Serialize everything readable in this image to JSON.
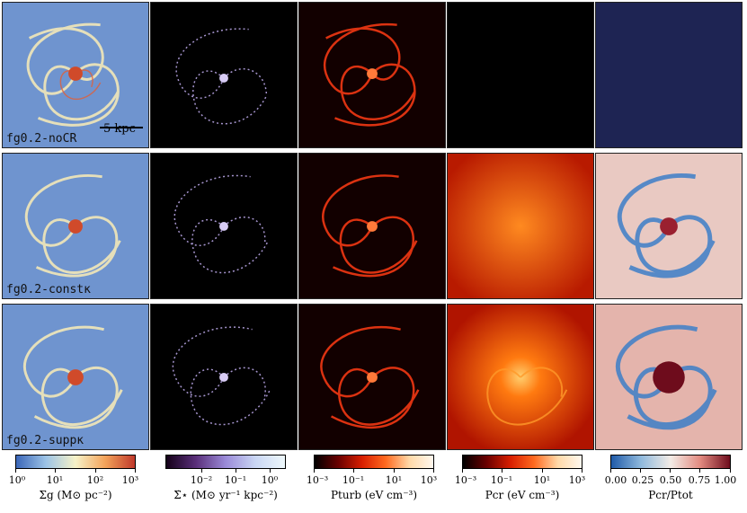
{
  "rows": [
    {
      "label": "fg0.2-noCR"
    },
    {
      "label": "fg0.2-constκ"
    },
    {
      "label": "fg0.2-suppκ"
    }
  ],
  "scale_label": "5 kpc",
  "colorbars": [
    {
      "title": "Σg (M⊙ pc⁻²)",
      "ticks": [
        "10⁰",
        "10¹",
        "10²",
        "10³"
      ]
    },
    {
      "title": "Σ̇⋆ (M⊙ yr⁻¹ kpc⁻²)",
      "ticks": [
        "10⁻²",
        "10⁻¹",
        "10⁰"
      ]
    },
    {
      "title": "Pturb (eV cm⁻³)",
      "ticks": [
        "10⁻³",
        "10⁻¹",
        "10¹",
        "10³"
      ]
    },
    {
      "title": "Pcr (eV cm⁻³)",
      "ticks": [
        "10⁻³",
        "10⁻¹",
        "10¹",
        "10³"
      ]
    },
    {
      "title": "Pcr/Ptot",
      "ticks": [
        "0.00",
        "0.25",
        "0.50",
        "0.75",
        "1.00"
      ]
    }
  ],
  "colors": {
    "gas_low": "#3b66b8",
    "gas_mid": "#f6f2c8",
    "gas_high": "#c0392b",
    "star_bg": "#050008",
    "star_hi": "#c9b8f0",
    "turb_bg": "#050000",
    "turb_hi": "#ff4a1a",
    "cr_bg": "#b81a00",
    "cr_hi": "#ff9a2a",
    "ratio_low": "#2a6fc0",
    "ratio_mid": "#f3ece6",
    "ratio_high": "#7a1020",
    "empty_black": "#000000",
    "empty_navy": "#1e2453"
  }
}
